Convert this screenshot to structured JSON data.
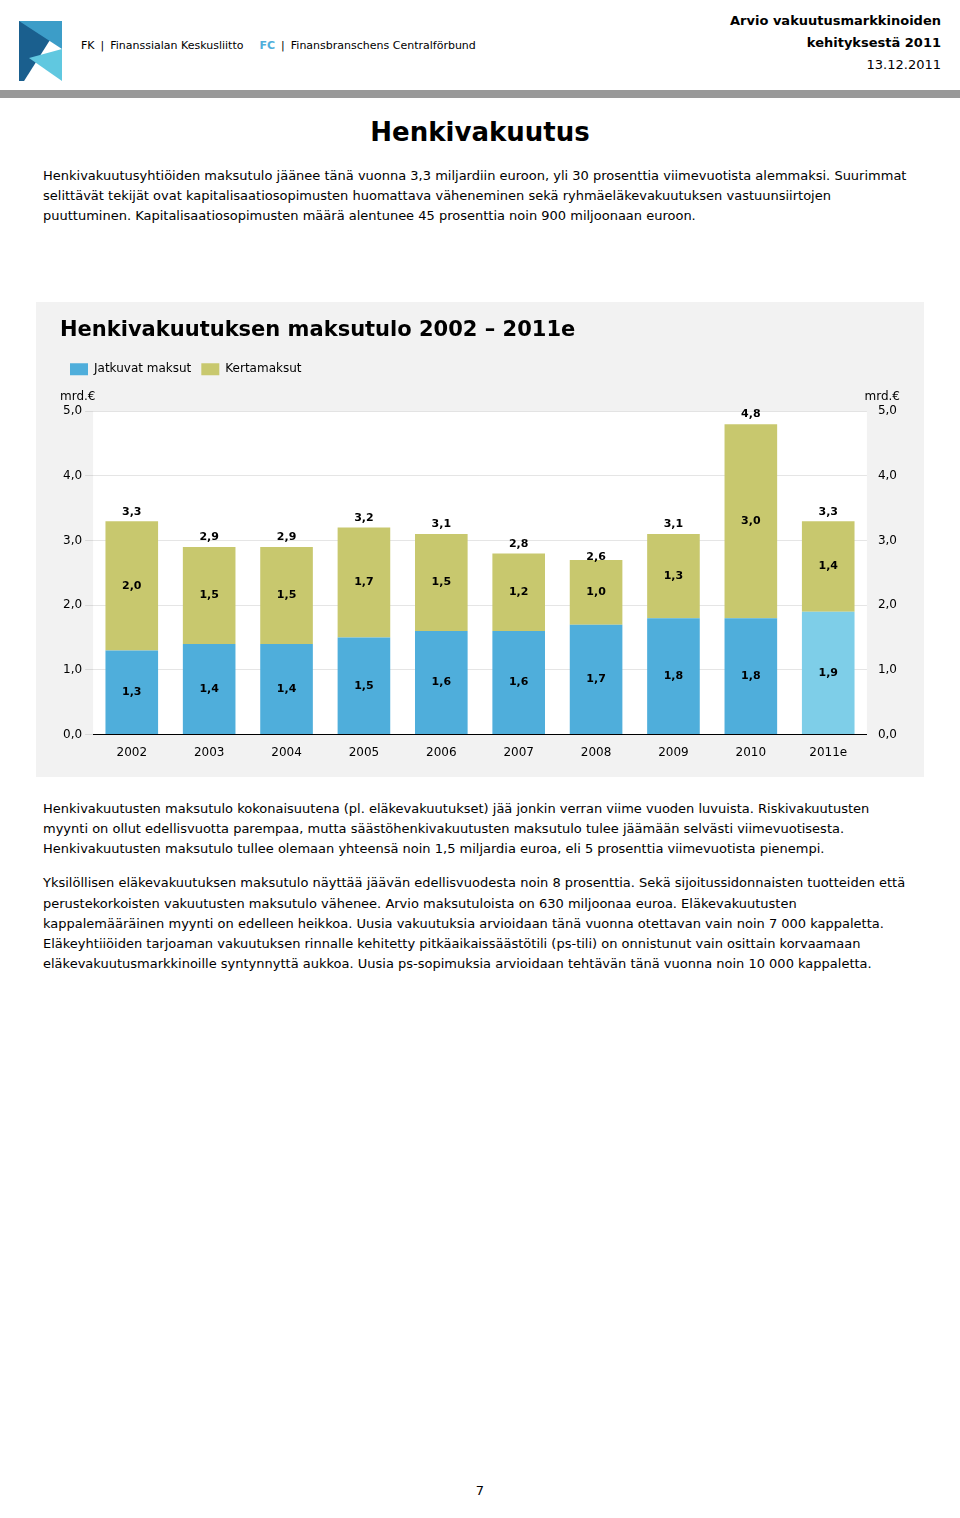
{
  "chart_data": {
    "type": "bar",
    "title": "Henkivakuutuksen maksutulo 2002 – 2011e",
    "categories": [
      "2002",
      "2003",
      "2004",
      "2005",
      "2006",
      "2007",
      "2008",
      "2009",
      "2010",
      "2011e"
    ],
    "series": [
      {
        "name": "Jatkuvat maksut",
        "colors": [
          "#4FAEDB",
          "#4FAEDB",
          "#4FAEDB",
          "#4FAEDB",
          "#4FAEDB",
          "#4FAEDB",
          "#4FAEDB",
          "#4FAEDB",
          "#4FAEDB",
          "#7ECEE8"
        ],
        "values": [
          1.3,
          1.4,
          1.4,
          1.5,
          1.6,
          1.6,
          1.7,
          1.8,
          1.8,
          1.9
        ],
        "value_labels": [
          "1,3",
          "1,4",
          "1,4",
          "1,5",
          "1,6",
          "1,6",
          "1,7",
          "1,8",
          "1,8",
          "1,9"
        ]
      },
      {
        "name": "Kertamaksut",
        "color": "#C8C86E",
        "values": [
          2.0,
          1.5,
          1.5,
          1.7,
          1.5,
          1.2,
          1.0,
          1.3,
          3.0,
          1.4
        ],
        "value_labels": [
          "2,0",
          "1,5",
          "1,5",
          "1,7",
          "1,5",
          "1,2",
          "1,0",
          "1,3",
          "3,0",
          "1,4"
        ]
      }
    ],
    "totals": {
      "values": [
        3.3,
        2.9,
        2.9,
        3.2,
        3.1,
        2.8,
        2.6,
        3.1,
        4.8,
        3.3
      ],
      "value_labels": [
        "3,3",
        "2,9",
        "2,9",
        "3,2",
        "3,1",
        "2,8",
        "2,6",
        "3,1",
        "4,8",
        "3,3"
      ]
    },
    "stacked": true,
    "data_labels": true,
    "ylabel": "mrd.€",
    "y2label": "mrd.€",
    "ylim": [
      0.0,
      5.0
    ],
    "yticks": [
      {
        "value": 0,
        "label": "0,0"
      },
      {
        "value": 1,
        "label": "1,0"
      },
      {
        "value": 2,
        "label": "2,0"
      },
      {
        "value": 3,
        "label": "3,0"
      },
      {
        "value": 4,
        "label": "4,0"
      },
      {
        "value": 5,
        "label": "5,0"
      }
    ],
    "y2lim": [
      0.0,
      5.0
    ],
    "y2ticks": [
      {
        "value": 0,
        "label": "0,0"
      },
      {
        "value": 1,
        "label": "1,0"
      },
      {
        "value": 2,
        "label": "2,0"
      },
      {
        "value": 3,
        "label": "3,0"
      },
      {
        "value": 4,
        "label": "4,0"
      },
      {
        "value": 5,
        "label": "5,0"
      }
    ],
    "grid": true,
    "legend": "upper left"
  },
  "page": {
    "header_left": [
      "FK",
      "|",
      "Finanssialan Keskusliitto",
      "FC",
      "|",
      "Finansbranschens Centralförbund"
    ],
    "header_right": [
      "Arvio vakuutusmarkkinoiden",
      "kehityksestä 2011",
      "13.12.2011"
    ],
    "page_title": "Henkivakuutus",
    "intro": "Henkivakuutusyhtiöiden maksutulo jäänee tänä vuonna 3,3 miljardiin euroon, yli 30 prosenttia viimevuotista alemmaksi. Suurimmat selittävät tekijät ovat kapitalisaatiosopimusten huomattava väheneminen sekä ryhmäeläkevakuutuksen vastuunsiirtojen puuttuminen. Kapitalisaatiosopimusten määrä alentunee 45 prosenttia noin 900 miljoonaan euroon.",
    "bottom": [
      "Henkivakuutusten maksutulo kokonaisuutena (pl. eläkevakuutukset) jää jonkin verran viime vuoden luvuista. Riskivakuutusten myynti on ollut edellisvuotta parempaa, mutta säästöhenkivakuutusten maksutulo tulee jäämään selvästi viimevuotisesta. Henkivakuutusten maksutulo tullee olemaan yhteensä noin 1,5 miljardia euroa, eli 5 prosenttia viimevuotista pienempi.",
      "Yksilöllisen eläkevakuutuksen maksutulo näyttää jäävän edellisvuodesta noin 8 prosenttia. Sekä sijoitussidonnaisten tuotteiden että perustekorkoisten vakuutusten maksutulo vähenee. Arvio maksutuloista on 630 miljoonaa euroa. Eläkevakuutusten kappalemääräinen myynti on edelleen heikkoa. Uusia vakuutuksia arvioidaan tänä vuonna otettavan vain noin 7 000 kappaletta. Eläkeyhtiiöiden tarjoaman vakuutuksen rinnalle kehitetty pitkäaikaissäästötili (ps-tili) on onnistunut vain osittain korvaamaan eläkevakuutusmarkkinoille syntynnyttä aukkoa. Uusia ps-sopimuksia arvioidaan tehtävän tänä vuonna noin 10 000 kappaletta."
    ],
    "page_number": "7"
  }
}
